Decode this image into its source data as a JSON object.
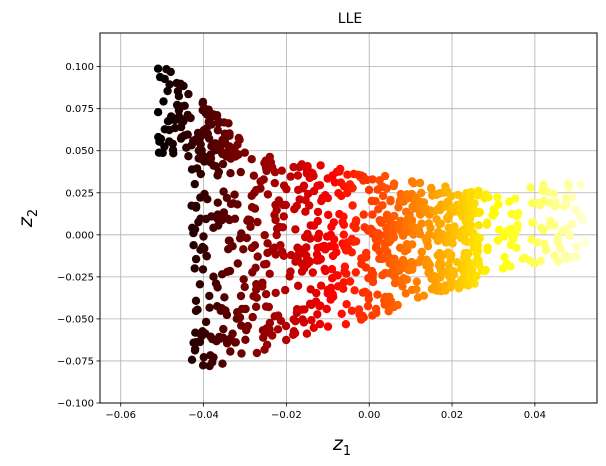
{
  "chart_data": {
    "type": "scatter",
    "title": "LLE",
    "xlabel": "z",
    "xlabel_subscript": "1",
    "ylabel": "z",
    "ylabel_subscript": "2",
    "xlim": [
      -0.065,
      0.055
    ],
    "ylim": [
      -0.1,
      0.12
    ],
    "xticks": [
      -0.06,
      -0.04,
      -0.02,
      0.0,
      0.02,
      0.04
    ],
    "xtick_labels": [
      "−0.06",
      "−0.04",
      "−0.02",
      "0.00",
      "0.02",
      "0.04"
    ],
    "yticks": [
      -0.1,
      -0.075,
      -0.05,
      -0.025,
      0.0,
      0.025,
      0.05,
      0.075,
      0.1
    ],
    "ytick_labels": [
      "−0.100",
      "−0.075",
      "−0.050",
      "−0.025",
      "0.000",
      "0.025",
      "0.050",
      "0.075",
      "0.100"
    ],
    "grid": true,
    "colormap": "hot",
    "colormap_stops": [
      "#000000",
      "#8b0000",
      "#ff0000",
      "#ff8c00",
      "#ffff00",
      "#ffffd0"
    ],
    "point_count_estimate": 1000
  }
}
